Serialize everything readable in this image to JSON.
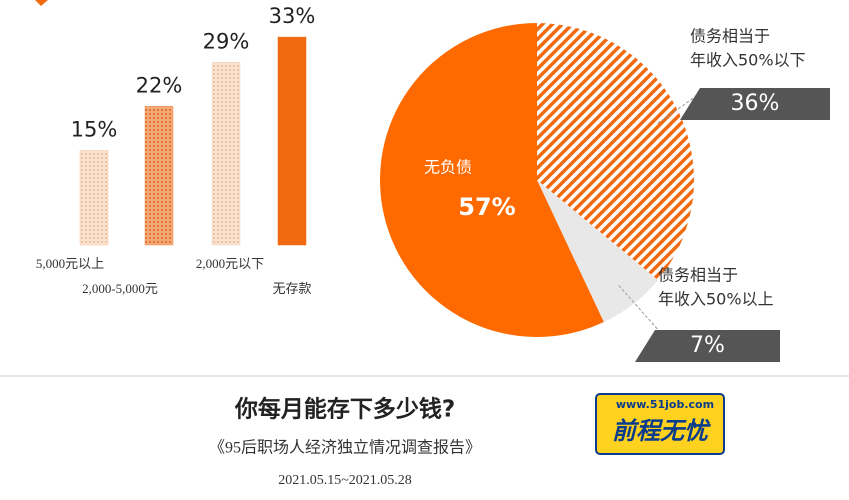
{
  "chart_data": [
    {
      "type": "bar",
      "categories": [
        "5,000元以上",
        "2,000-5,000元",
        "2,000元以下",
        "无存款"
      ],
      "values": [
        15,
        22,
        29,
        33
      ],
      "value_labels": [
        "15%",
        "22%",
        "29%",
        "33%"
      ],
      "colors": [
        "#f9c6a0",
        "#f08a4b",
        "#f6d7c0",
        "#f26a10"
      ]
    },
    {
      "type": "pie",
      "categories": [
        [
          "债务相当于",
          "年收入50%以下"
        ],
        [
          "债务相当于",
          "年收入50%以上"
        ],
        [
          "无负债"
        ]
      ],
      "values": [
        36,
        7,
        57
      ],
      "value_labels": [
        "36%",
        "7%",
        "57%"
      ],
      "colors": [
        "#f26a10",
        "#e8e8e8",
        "#ff6a00"
      ]
    }
  ],
  "footer": {
    "title": "你每月能存下多少钱?",
    "subtitle": "《95后职场人经济独立情况调查报告》",
    "date": "2021.05.15~2021.05.28",
    "logo_url": "www.51job.com",
    "logo_name": "前程无忧"
  }
}
